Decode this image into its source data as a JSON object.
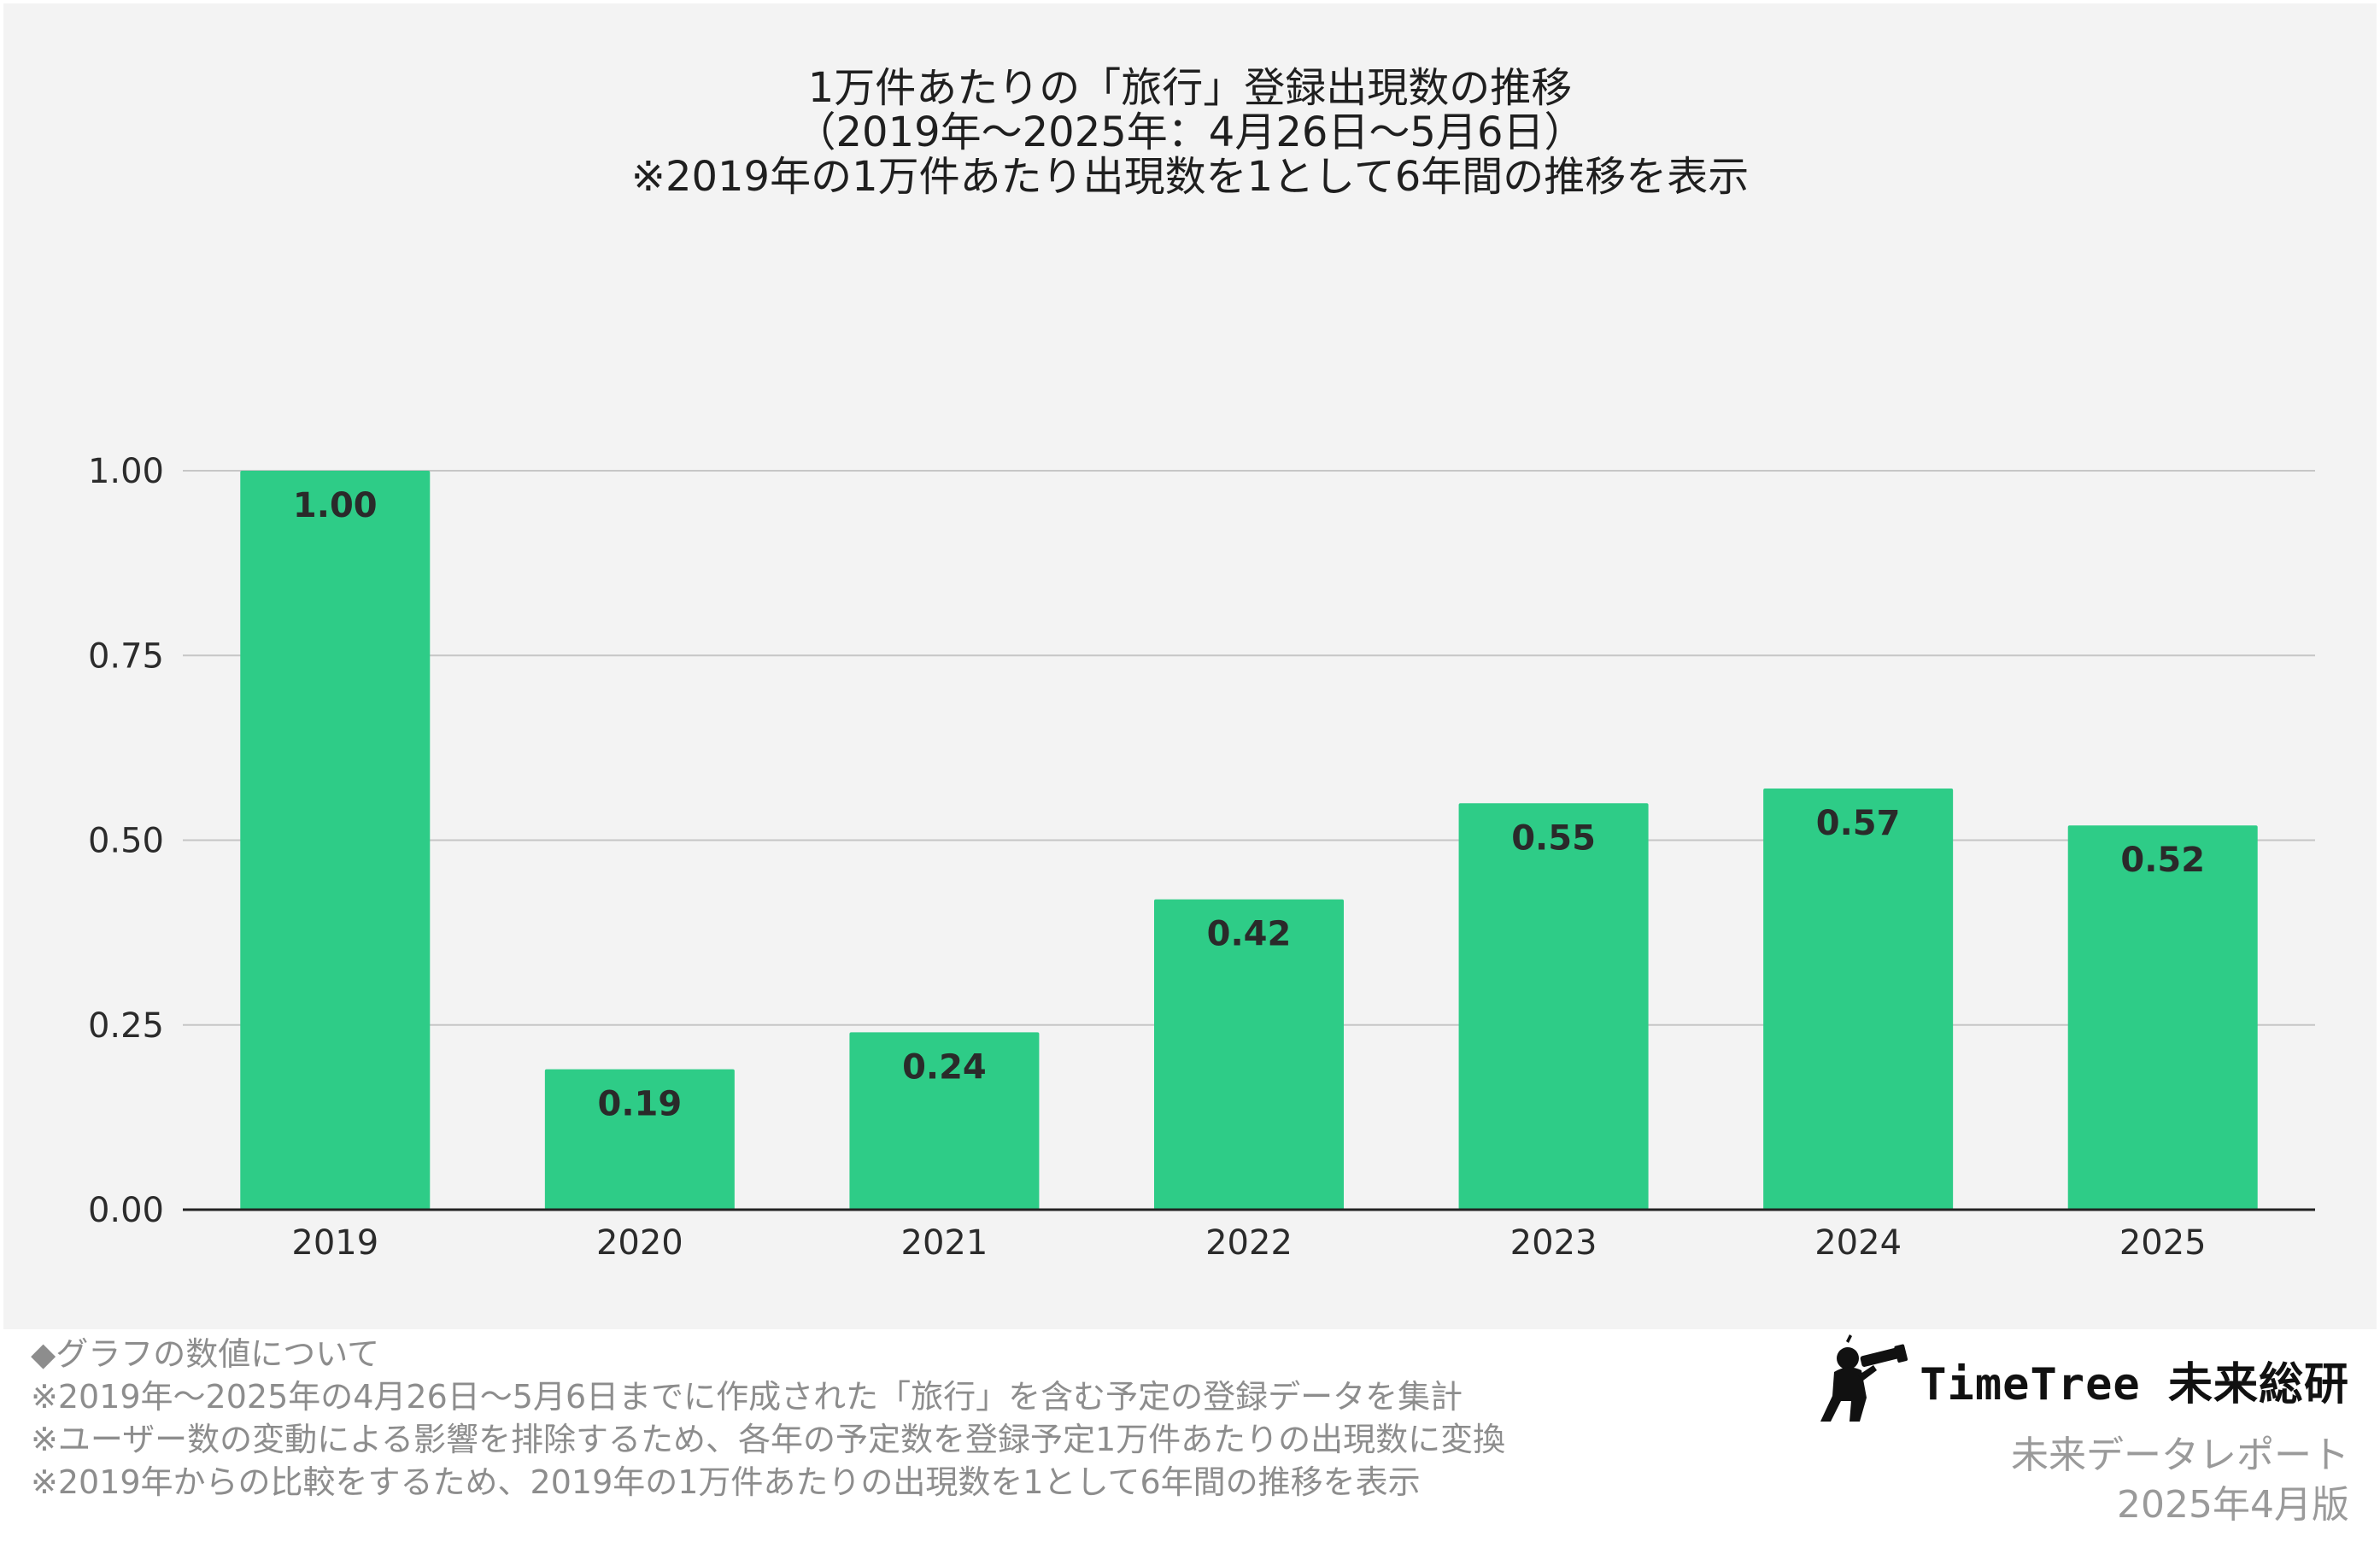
{
  "title_lines": [
    "1万件あたりの「旅行」登録出現数の推移",
    "（2019年〜2025年：4月26日〜5月6日）",
    "※2019年の1万件あたり出現数を1として6年間の推移を表示"
  ],
  "chart_data": {
    "type": "bar",
    "categories": [
      "2019",
      "2020",
      "2021",
      "2022",
      "2023",
      "2024",
      "2025"
    ],
    "values": [
      1.0,
      0.19,
      0.24,
      0.42,
      0.55,
      0.57,
      0.52
    ],
    "data_labels": [
      "1.00",
      "0.19",
      "0.24",
      "0.42",
      "0.55",
      "0.57",
      "0.52"
    ],
    "yticks": [
      "0.00",
      "0.25",
      "0.50",
      "0.75",
      "1.00"
    ],
    "ylim": [
      0,
      1
    ],
    "grid": true,
    "bar_color": "#2ecc87",
    "title": "1万件あたりの「旅行」登録出現数の推移"
  },
  "notes": [
    "◆グラフの数値について",
    "※2019年〜2025年の4月26日〜5月6日までに作成された「旅行」を含む予定の登録データを集計",
    "※ユーザー数の変動による影響を排除するため、各年の予定数を登録予定1万件あたりの出現数に変換",
    "※2019年からの比較をするため、2019年の1万件あたりの出現数を1として6年間の推移を表示"
  ],
  "brand": {
    "name": "TimeTree 未来総研",
    "logo_icon": "telescope-person-icon",
    "subtitle": "未来データレポート",
    "edition": "2025年4月版"
  }
}
